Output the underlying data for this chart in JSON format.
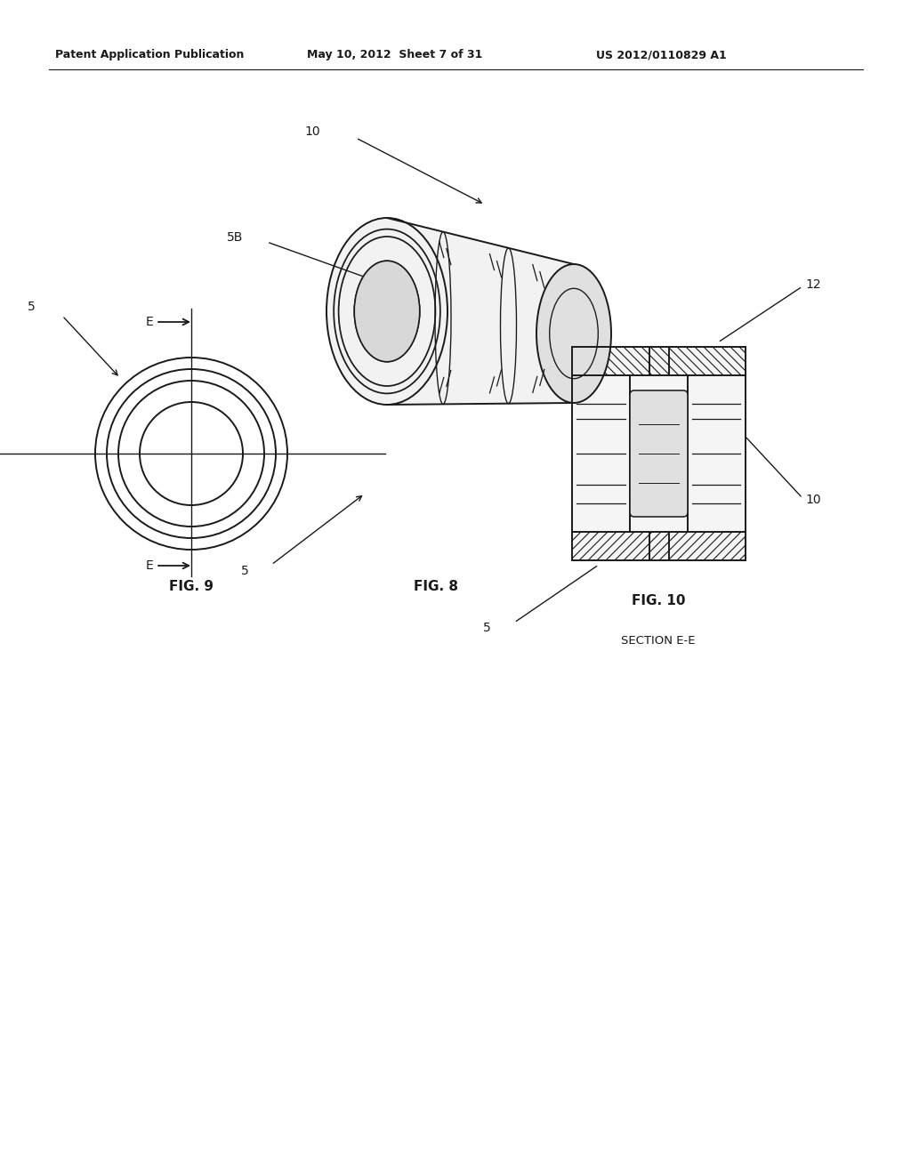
{
  "header_left": "Patent Application Publication",
  "header_center": "May 10, 2012  Sheet 7 of 31",
  "header_right": "US 2012/0110829 A1",
  "fig8_label": "FIG. 8",
  "fig9_label": "FIG. 9",
  "fig10_label": "FIG. 10",
  "fig10_sublabel": "SECTION E-E",
  "bg_color": "#ffffff",
  "line_color": "#1a1a1a",
  "header_font_size": 9.5,
  "fig_label_font_size": 11
}
